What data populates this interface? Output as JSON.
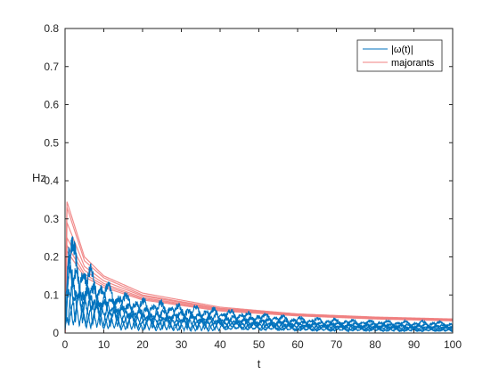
{
  "chart_data": {
    "type": "line",
    "xlabel": "t",
    "ylabel": "Hz",
    "xlim": [
      0,
      100
    ],
    "ylim": [
      0,
      0.8
    ],
    "xticks": [
      0,
      10,
      20,
      30,
      40,
      50,
      60,
      70,
      80,
      90,
      100
    ],
    "yticks": [
      0,
      0.1,
      0.2,
      0.3,
      0.4,
      0.5,
      0.6,
      0.7,
      0.8
    ],
    "xtick_labels": [
      "0",
      "10",
      "20",
      "30",
      "40",
      "50",
      "60",
      "70",
      "80",
      "90",
      "100"
    ],
    "ytick_labels": [
      "0",
      "0.1",
      "0.2",
      "0.3",
      "0.4",
      "0.5",
      "0.6",
      "0.7",
      "0.8"
    ],
    "grid": false,
    "legend": {
      "location": "top-right",
      "entries": [
        {
          "label": "|ω(t)|",
          "color": "#0072BD"
        },
        {
          "label": "majorants",
          "color": "#F08080"
        }
      ]
    },
    "series": [
      {
        "name": "|ω(t)|",
        "color": "#0072BD",
        "envelope": {
          "x": [
            0,
            1,
            2,
            4,
            6,
            10,
            15,
            20,
            30,
            40,
            50,
            60,
            70,
            80,
            90,
            100
          ],
          "y": [
            0.05,
            0.27,
            0.23,
            0.18,
            0.17,
            0.13,
            0.1,
            0.085,
            0.07,
            0.06,
            0.05,
            0.04,
            0.035,
            0.032,
            0.03,
            0.028
          ]
        },
        "oscillation_period": 4.5
      },
      {
        "name": "majorants",
        "color": "#F08080",
        "curves": [
          {
            "x": [
              0.5,
              5,
              10,
              20,
              40,
              60,
              80,
              100
            ],
            "y": [
              0.345,
              0.2,
              0.15,
              0.105,
              0.068,
              0.05,
              0.042,
              0.037
            ]
          },
          {
            "x": [
              0.5,
              5,
              10,
              20,
              40,
              60,
              80,
              100
            ],
            "y": [
              0.33,
              0.19,
              0.145,
              0.1,
              0.065,
              0.05,
              0.041,
              0.036
            ]
          },
          {
            "x": [
              0.5,
              5,
              10,
              20,
              40,
              60,
              80,
              100
            ],
            "y": [
              0.29,
              0.175,
              0.137,
              0.097,
              0.064,
              0.049,
              0.04,
              0.035
            ]
          },
          {
            "x": [
              0.5,
              5,
              10,
              20,
              40,
              60,
              80,
              100
            ],
            "y": [
              0.25,
              0.165,
              0.13,
              0.093,
              0.062,
              0.048,
              0.039,
              0.034
            ]
          },
          {
            "x": [
              0.5,
              5,
              10,
              20,
              40,
              60,
              80,
              100
            ],
            "y": [
              0.23,
              0.155,
              0.125,
              0.09,
              0.06,
              0.046,
              0.038,
              0.033
            ]
          },
          {
            "x": [
              0.5,
              5,
              10,
              20,
              40,
              60,
              80,
              100
            ],
            "y": [
              0.215,
              0.148,
              0.12,
              0.087,
              0.058,
              0.045,
              0.037,
              0.032
            ]
          }
        ]
      }
    ]
  }
}
